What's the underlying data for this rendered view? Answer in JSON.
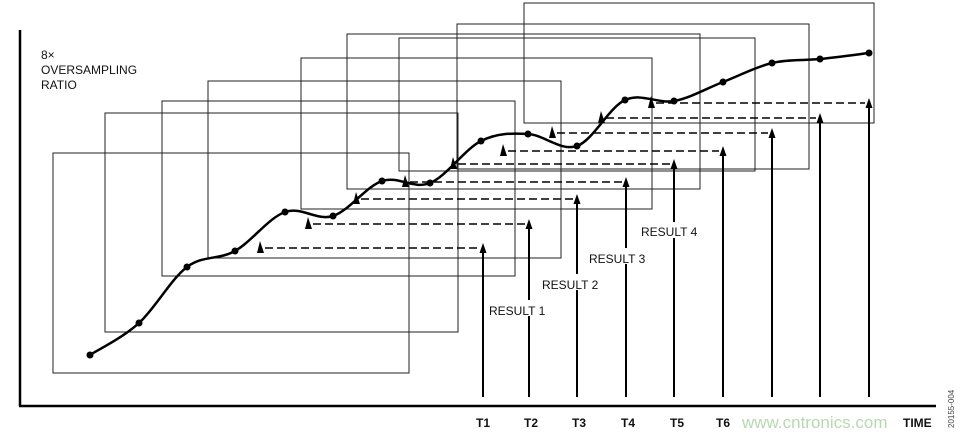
{
  "title_lines": [
    "8×",
    "OVERSAMPLING",
    "RATIO"
  ],
  "x_axis_label": "TIME",
  "time_labels": [
    "T1",
    "T2",
    "T3",
    "T4",
    "T5",
    "T6"
  ],
  "results": [
    "RESULT 1",
    "RESULT 2",
    "RESULT 3",
    "RESULT 4"
  ],
  "watermark": "www.cntronics.com",
  "figure_id": "20155-004",
  "colors": {
    "line": "#000000",
    "box": "#222222",
    "watermark": "#b7d9b0"
  }
}
